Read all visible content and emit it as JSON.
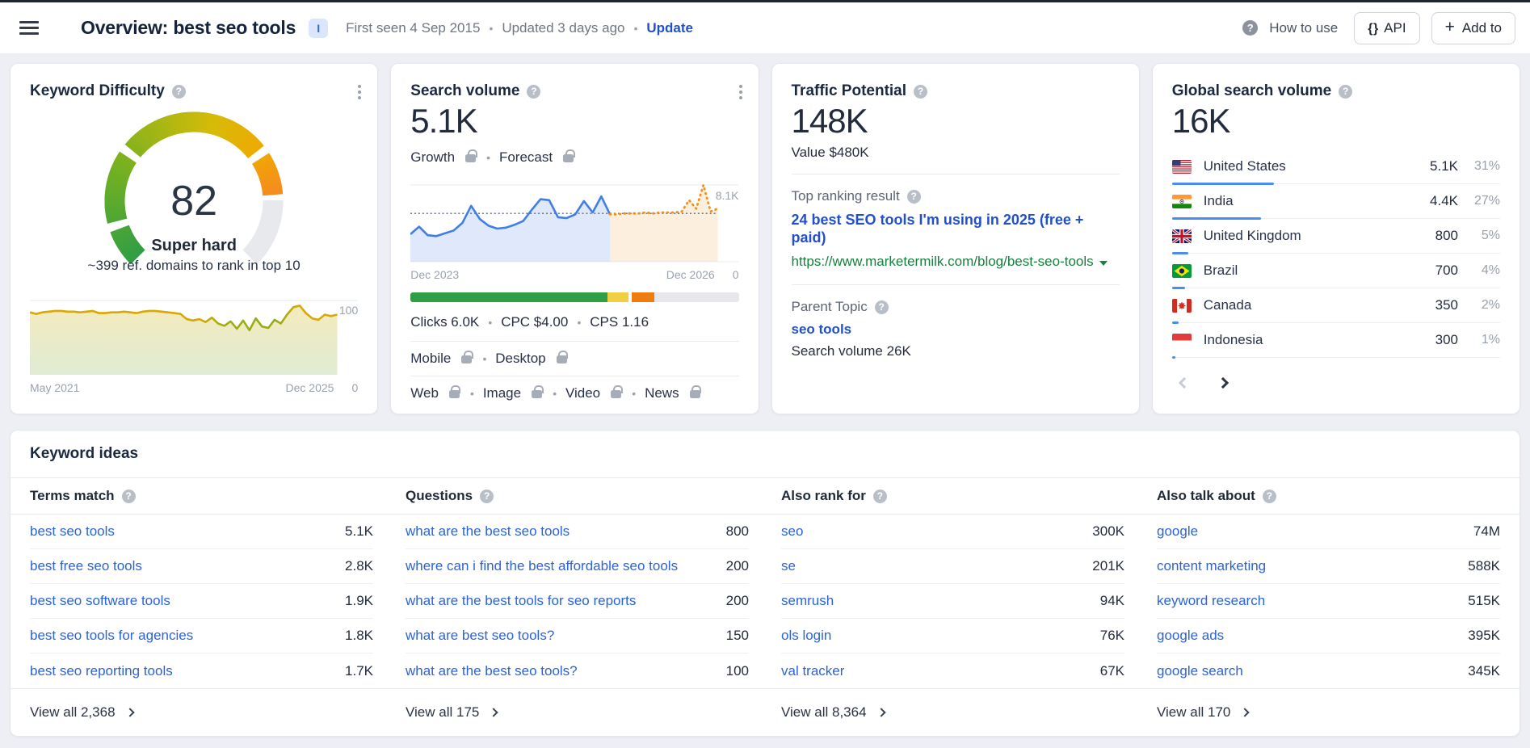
{
  "topbar": {
    "title": "Overview: best seo tools",
    "shortcut_badge": "I",
    "first_seen": "First seen 4 Sep 2015",
    "updated": "Updated 3 days ago",
    "update_link": "Update",
    "how_to_use": "How to use",
    "api_label": "API",
    "add_to_label": "Add to"
  },
  "keyword_difficulty": {
    "title": "Keyword Difficulty",
    "value": "82",
    "level": "Super hard",
    "description": "~399 ref. domains to rank in top 10",
    "gauge": {
      "value": 82,
      "max": 100,
      "thresholds": [
        10,
        30,
        70
      ]
    },
    "history": {
      "y_max_label": "100",
      "y_min_label": "0",
      "x_start": "May 2021",
      "x_end": "Dec 2025",
      "points": [
        84,
        82,
        84,
        85,
        86,
        86,
        85,
        85,
        84,
        85,
        86,
        83,
        83,
        84,
        84,
        85,
        84,
        83,
        85,
        86,
        86,
        85,
        84,
        83,
        82,
        75,
        73,
        75,
        71,
        77,
        69,
        66,
        72,
        62,
        73,
        60,
        76,
        65,
        63,
        74,
        69,
        81,
        91,
        93,
        83,
        76,
        74,
        81,
        79,
        81
      ]
    }
  },
  "search_volume": {
    "title": "Search volume",
    "value": "5.1K",
    "growth_label": "Growth",
    "forecast_label": "Forecast",
    "chart": {
      "y_top_label": "8.1K",
      "y_min_label": "0",
      "x_start": "Dec 2023",
      "x_end": "Dec 2026",
      "y_max": 8.1,
      "reference_level": 5.1,
      "history": [
        2.9,
        3.7,
        2.8,
        2.7,
        3.0,
        3.3,
        4.1,
        5.9,
        4.5,
        3.8,
        3.5,
        3.6,
        3.9,
        4.3,
        5.5,
        6.6,
        6.5,
        4.7,
        4.6,
        5.0,
        6.4,
        5.2,
        6.9,
        5.0
      ],
      "forecast": [
        5.0,
        5.0,
        5.1,
        5.1,
        5.1,
        5.2,
        5.1,
        5.2,
        5.2,
        5.2,
        5.3,
        6.5,
        5.6,
        8.1,
        5.3,
        5.6
      ]
    },
    "serp_bar": [
      {
        "color": "#2f9e44",
        "pct": 60,
        "gap": 0
      },
      {
        "color": "#f2cf41",
        "pct": 6.5,
        "gap": 0
      },
      {
        "color": "#ee7c10",
        "pct": 7,
        "gap": 0.8
      },
      {
        "color": "#e6e7ea",
        "pct": 25.7,
        "gap": 0
      }
    ],
    "clicks": "Clicks 6.0K",
    "cpc": "CPC $4.00",
    "cps": "CPS 1.16",
    "mobile_label": "Mobile",
    "desktop_label": "Desktop",
    "web_label": "Web",
    "image_label": "Image",
    "video_label": "Video",
    "news_label": "News"
  },
  "traffic_potential": {
    "title": "Traffic Potential",
    "value": "148K",
    "value_line": "Value $480K",
    "top_ranking_label": "Top ranking result",
    "top_ranking_title": "24 best SEO tools I'm using in 2025 (free + paid)",
    "top_ranking_url": "https://www.marketermilk.com/blog/best-seo-tools",
    "parent_topic_label": "Parent Topic",
    "parent_topic": "seo tools",
    "parent_topic_volume": "Search volume 26K"
  },
  "global_volume": {
    "title": "Global search volume",
    "value": "16K",
    "countries": [
      {
        "flag": "us",
        "name": "United States",
        "value": "5.1K",
        "pct": "31%",
        "share": 31
      },
      {
        "flag": "in",
        "name": "India",
        "value": "4.4K",
        "pct": "27%",
        "share": 27
      },
      {
        "flag": "gb",
        "name": "United Kingdom",
        "value": "800",
        "pct": "5%",
        "share": 5
      },
      {
        "flag": "br",
        "name": "Brazil",
        "value": "700",
        "pct": "4%",
        "share": 4
      },
      {
        "flag": "ca",
        "name": "Canada",
        "value": "350",
        "pct": "2%",
        "share": 2
      },
      {
        "flag": "id",
        "name": "Indonesia",
        "value": "300",
        "pct": "1%",
        "share": 1
      }
    ]
  },
  "keyword_ideas": {
    "title": "Keyword ideas",
    "columns": [
      {
        "header": "Terms match",
        "view_all": "View all 2,368",
        "rows": [
          [
            "best seo tools",
            "5.1K"
          ],
          [
            "best free seo tools",
            "2.8K"
          ],
          [
            "best seo software tools",
            "1.9K"
          ],
          [
            "best seo tools for agencies",
            "1.8K"
          ],
          [
            "best seo reporting tools",
            "1.7K"
          ]
        ]
      },
      {
        "header": "Questions",
        "view_all": "View all 175",
        "rows": [
          [
            "what are the best seo tools",
            "800"
          ],
          [
            "where can i find the best affordable seo tools",
            "200"
          ],
          [
            "what are the best tools for seo reports",
            "200"
          ],
          [
            "what are best seo tools?",
            "150"
          ],
          [
            "what are the best seo tools?",
            "100"
          ]
        ]
      },
      {
        "header": "Also rank for",
        "view_all": "View all 8,364",
        "rows": [
          [
            "seo",
            "300K"
          ],
          [
            "se",
            "201K"
          ],
          [
            "semrush",
            "94K"
          ],
          [
            "ols login",
            "76K"
          ],
          [
            "val tracker",
            "67K"
          ]
        ]
      },
      {
        "header": "Also talk about",
        "view_all": "View all 170",
        "rows": [
          [
            "google",
            "74M"
          ],
          [
            "content marketing",
            "588K"
          ],
          [
            "keyword research",
            "515K"
          ],
          [
            "google ads",
            "395K"
          ],
          [
            "google search",
            "345K"
          ]
        ]
      }
    ]
  }
}
